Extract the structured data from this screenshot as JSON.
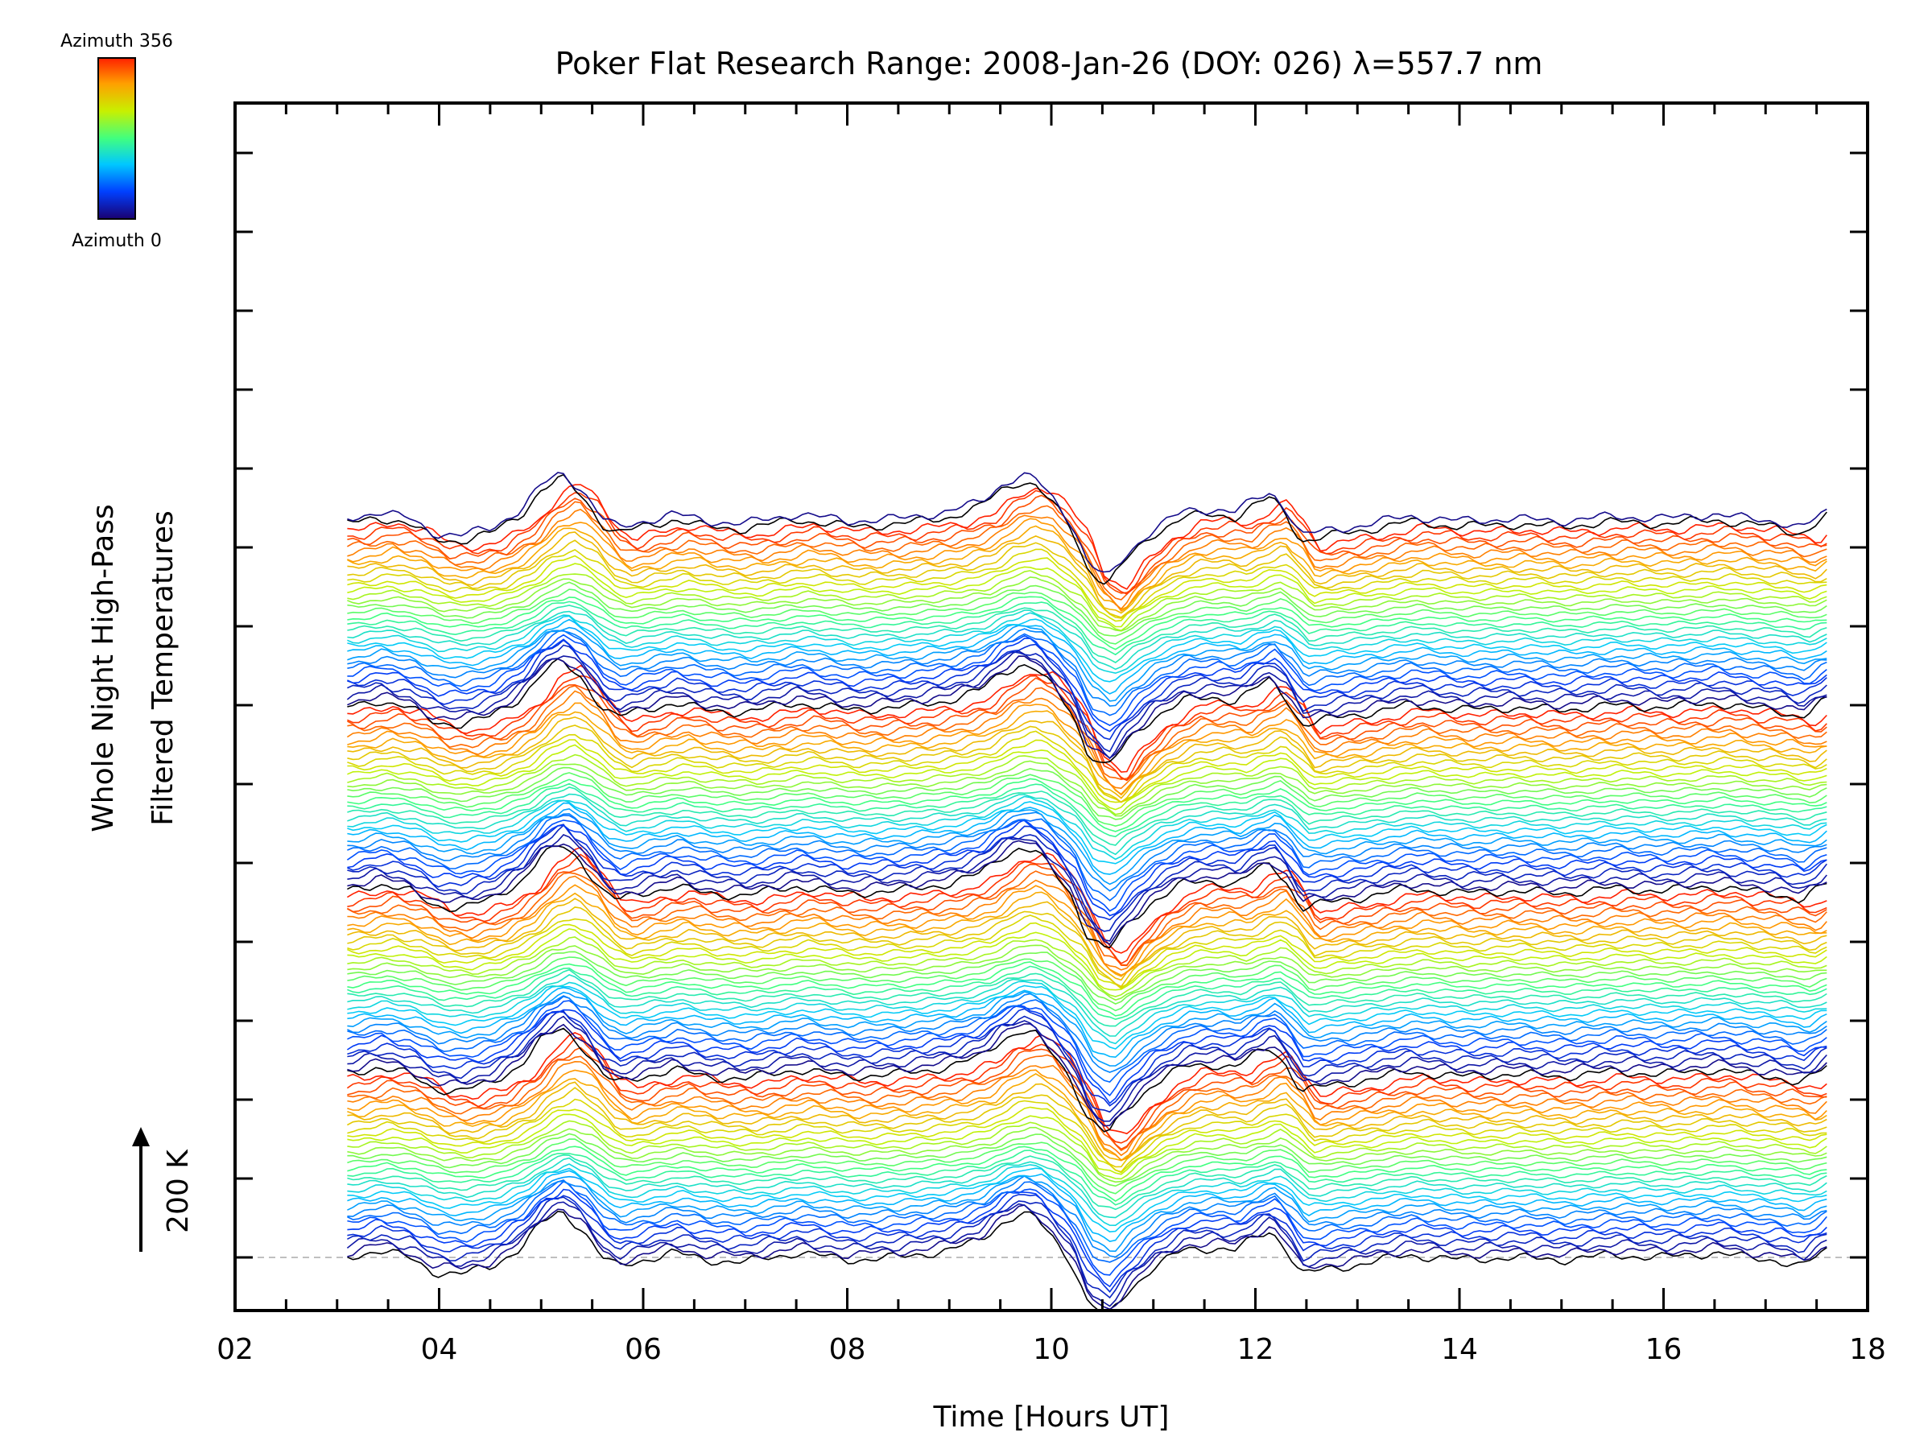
{
  "chart_data": {
    "type": "line",
    "title": "Poker Flat Research Range: 2008-Jan-26 (DOY: 026) λ=557.7 nm",
    "xlabel": "Time [Hours UT]",
    "ylabel_line1": "Whole Night High-Pass",
    "ylabel_line2": "Filtered Temperatures",
    "scale_label": "200 K",
    "xlim": [
      2,
      18
    ],
    "x_ticks": [
      "02",
      "04",
      "06",
      "08",
      "10",
      "12",
      "14",
      "16",
      "18"
    ],
    "x_tick_values": [
      2,
      4,
      6,
      8,
      10,
      12,
      14,
      16,
      18
    ],
    "colorbar": {
      "top_label": "Azimuth 356",
      "bottom_label": "Azimuth 0",
      "colormap": "rainbow",
      "stops": [
        "#1a0070",
        "#0040ff",
        "#00c8ff",
        "#40ff80",
        "#c8f000",
        "#ffa000",
        "#ff2000"
      ]
    },
    "trace_data_range": [
      3.1,
      17.6
    ],
    "trace_count": 134,
    "group_size": 33,
    "groups": 4,
    "baseline_style": "dashed-gray",
    "profile": {
      "x": [
        3.1,
        3.4,
        3.7,
        3.95,
        4.2,
        4.5,
        4.8,
        5.0,
        5.2,
        5.4,
        5.6,
        5.75,
        6.0,
        6.3,
        6.6,
        7.0,
        7.5,
        8.0,
        8.5,
        9.0,
        9.3,
        9.5,
        9.7,
        9.85,
        10.0,
        10.2,
        10.35,
        10.55,
        10.75,
        11.0,
        11.3,
        11.6,
        11.8,
        12.0,
        12.15,
        12.3,
        12.45,
        12.7,
        13.0,
        13.5,
        14.0,
        14.5,
        15.0,
        15.5,
        16.0,
        16.5,
        16.8,
        17.1,
        17.35,
        17.6
      ],
      "y": [
        0,
        0.15,
        0,
        -0.3,
        -0.35,
        -0.2,
        0.2,
        0.7,
        0.95,
        0.6,
        0,
        -0.2,
        -0.05,
        0.1,
        -0.05,
        -0.1,
        0.1,
        -0.05,
        0,
        0.15,
        0.35,
        0.7,
        0.9,
        0.8,
        0.45,
        -0.1,
        -0.9,
        -1.25,
        -0.7,
        -0.2,
        0.15,
        0.2,
        0.15,
        0.4,
        0.55,
        0.2,
        -0.35,
        -0.25,
        -0.15,
        0.05,
        -0.05,
        0,
        -0.05,
        0.05,
        0,
        0.1,
        0,
        -0.05,
        -0.2,
        0.15
      ]
    }
  }
}
